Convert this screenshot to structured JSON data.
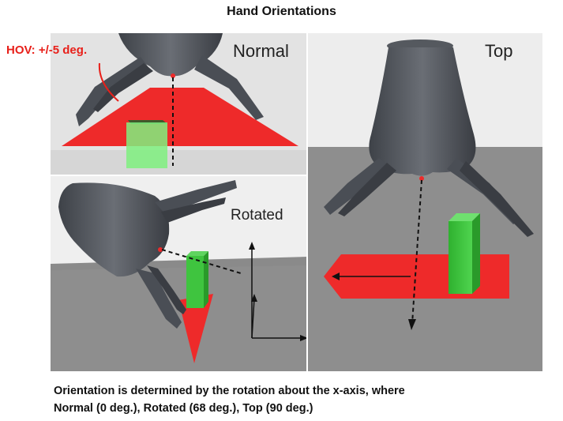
{
  "title": "Hand Orientations",
  "panels": {
    "normal": {
      "label": "Normal"
    },
    "top": {
      "label": "Top"
    },
    "rotated": {
      "label": "Rotated"
    }
  },
  "annotation": {
    "hov": "HOV: +/-5 deg."
  },
  "caption": {
    "line1": "Orientation is determined by the rotation about the x-axis, where",
    "line2": "Normal (0 deg.), Rotated (68 deg.), Top (90 deg.)"
  },
  "colors": {
    "fov_red": "#ee2a2a",
    "object_green": "#3fc43f",
    "hand_gray": "#4f535a",
    "background_gray": "#8e8e8e"
  }
}
